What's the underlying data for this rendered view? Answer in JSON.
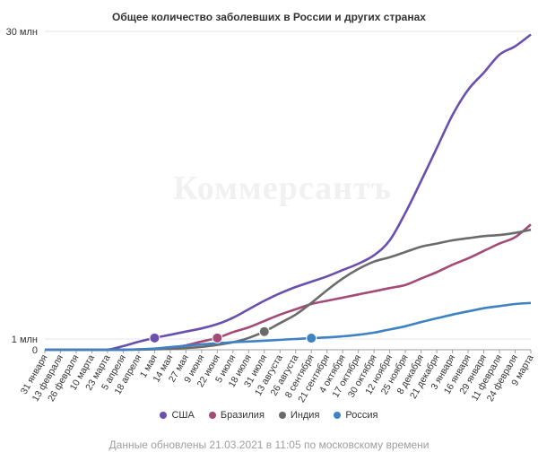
{
  "chart_data": {
    "type": "line",
    "title": "Общее количество заболевших в России и других странах",
    "watermark": "Коммерсантъ",
    "footer": "Данные обновлены 21.03.2021 в 11:05 по московскому времени",
    "y_ticks": [
      {
        "value": 0,
        "label": "0"
      },
      {
        "value": 1000000,
        "label": "1 млн"
      },
      {
        "value": 30000000,
        "label": "30 млн"
      }
    ],
    "ylim": [
      0,
      30000000
    ],
    "categories": [
      "31 января",
      "13 февраля",
      "26 февраля",
      "10 марта",
      "23 марта",
      "5 апреля",
      "18 апреля",
      "1 мая",
      "14 мая",
      "27 мая",
      "9 июня",
      "22 июня",
      "5 июля",
      "18 июля",
      "31 июля",
      "13 августа",
      "26 августа",
      "8 сентября",
      "21 сентября",
      "4 октября",
      "17 октября",
      "30 октября",
      "12 ноября",
      "25 ноября",
      "8 декабря",
      "21 декабря",
      "3 января",
      "16 января",
      "29 января",
      "11 февраля",
      "24 февраля",
      "9 марта"
    ],
    "series": [
      {
        "name": "США",
        "color": "#6a4fae",
        "values": [
          0,
          0,
          0,
          0,
          0.01,
          0.34,
          0.75,
          1.1,
          1.4,
          1.7,
          2.0,
          2.4,
          3.0,
          3.8,
          4.6,
          5.3,
          5.9,
          6.4,
          6.9,
          7.5,
          8.1,
          8.9,
          10.3,
          12.9,
          15.9,
          19.0,
          22.1,
          24.5,
          26.1,
          27.8,
          28.6,
          29.7
        ],
        "marker_index": 7
      },
      {
        "name": "Бразилия",
        "color": "#a44a78",
        "values": [
          0,
          0,
          0,
          0,
          0,
          0.01,
          0.03,
          0.09,
          0.2,
          0.41,
          0.77,
          1.1,
          1.65,
          2.1,
          2.7,
          3.3,
          3.8,
          4.3,
          4.6,
          4.9,
          5.2,
          5.5,
          5.8,
          6.1,
          6.7,
          7.3,
          8.0,
          8.6,
          9.3,
          10.0,
          10.6,
          11.8
        ],
        "marker_index": 11
      },
      {
        "name": "Индия",
        "color": "#6b6b6b",
        "values": [
          0,
          0,
          0,
          0,
          0,
          0,
          0.02,
          0.04,
          0.08,
          0.16,
          0.27,
          0.45,
          0.7,
          1.1,
          1.7,
          2.5,
          3.3,
          4.4,
          5.6,
          6.7,
          7.6,
          8.3,
          8.7,
          9.2,
          9.7,
          10.0,
          10.3,
          10.5,
          10.7,
          10.8,
          11.0,
          11.3
        ],
        "marker_index": 14
      },
      {
        "name": "Россия",
        "color": "#3f82c4",
        "values": [
          0,
          0,
          0,
          0,
          0,
          0.01,
          0.04,
          0.11,
          0.24,
          0.37,
          0.5,
          0.6,
          0.7,
          0.77,
          0.84,
          0.92,
          1.0,
          1.08,
          1.15,
          1.25,
          1.4,
          1.6,
          1.9,
          2.2,
          2.6,
          2.95,
          3.3,
          3.6,
          3.9,
          4.1,
          4.3,
          4.4
        ],
        "marker_index": 17
      }
    ],
    "values_unit": "млн"
  }
}
